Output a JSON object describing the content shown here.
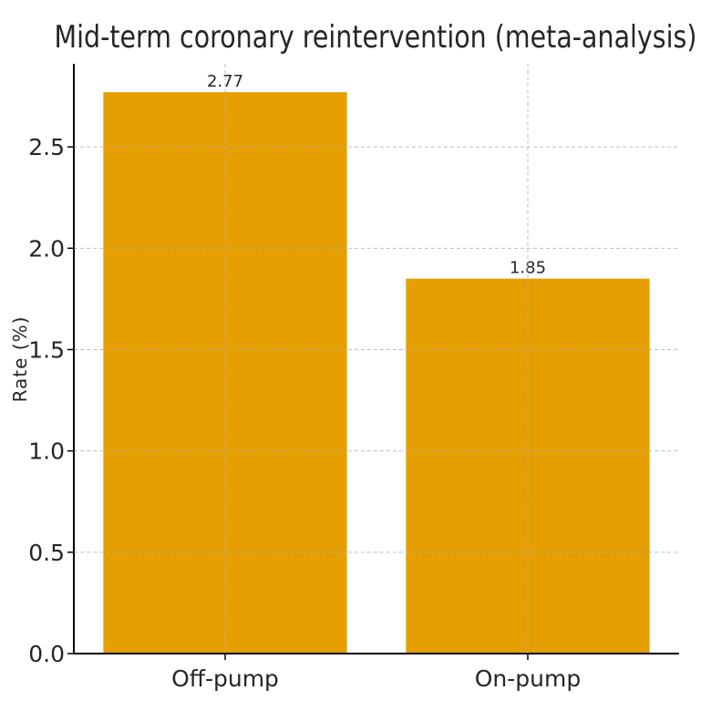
{
  "chart_data": {
    "type": "bar",
    "title": "Mid-term coronary reintervention (meta-analysis)",
    "xlabel": "",
    "ylabel": "Rate (%)",
    "categories": [
      "Off-pump",
      "On-pump"
    ],
    "values": [
      2.77,
      1.85
    ],
    "value_labels": [
      "2.77",
      "1.85"
    ],
    "ylim": [
      0,
      2.91
    ],
    "yticks": [
      0.0,
      0.5,
      1.0,
      1.5,
      2.0,
      2.5
    ],
    "ytick_labels": [
      "0.0",
      "0.5",
      "1.0",
      "1.5",
      "2.0",
      "2.5"
    ],
    "grid": true,
    "bar_color": "#E69F00",
    "grid_color": "#b0b0b0",
    "axis_color": "#000000"
  }
}
